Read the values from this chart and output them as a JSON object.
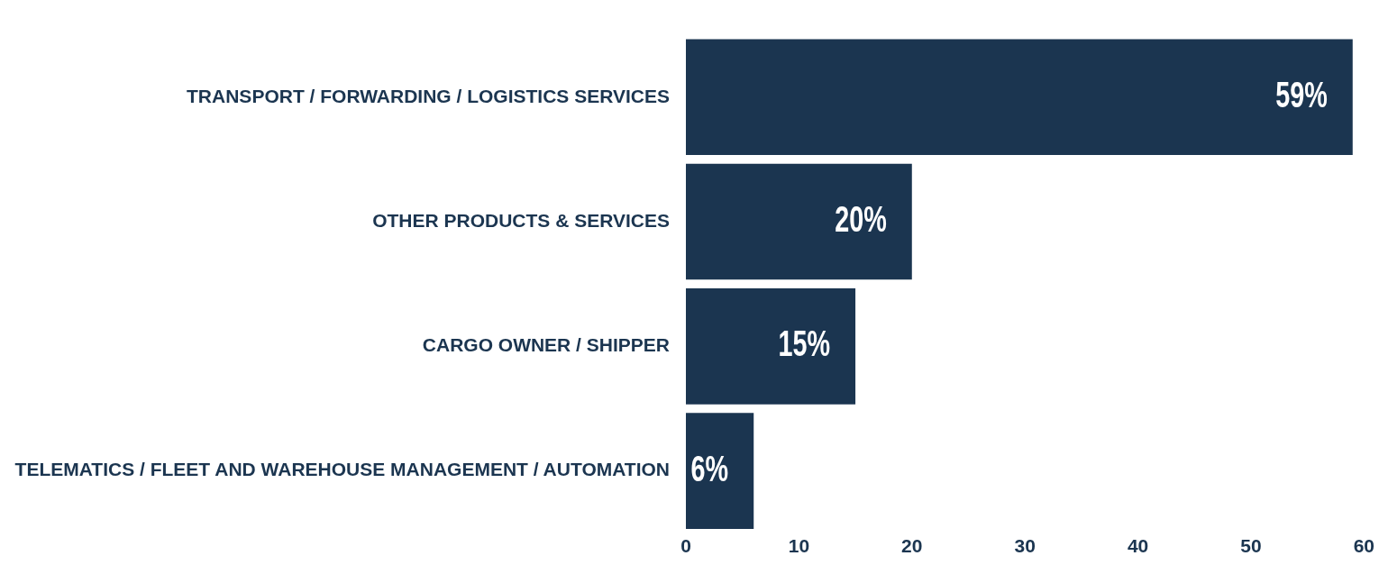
{
  "chart_data": {
    "type": "bar",
    "orientation": "horizontal",
    "categories": [
      "TRANSPORT / FORWARDING / LOGISTICS SERVICES",
      "OTHER PRODUCTS & SERVICES",
      "CARGO OWNER / SHIPPER",
      "TELEMATICS / FLEET AND WAREHOUSE MANAGEMENT / AUTOMATION"
    ],
    "values": [
      59,
      20,
      15,
      6
    ],
    "value_labels": [
      "59%",
      "20%",
      "15%",
      "6%"
    ],
    "color": "#1b3550",
    "xlim": [
      0,
      60
    ],
    "xticks": [
      0,
      10,
      20,
      30,
      40,
      50,
      60
    ],
    "grid": false,
    "legend": false
  }
}
